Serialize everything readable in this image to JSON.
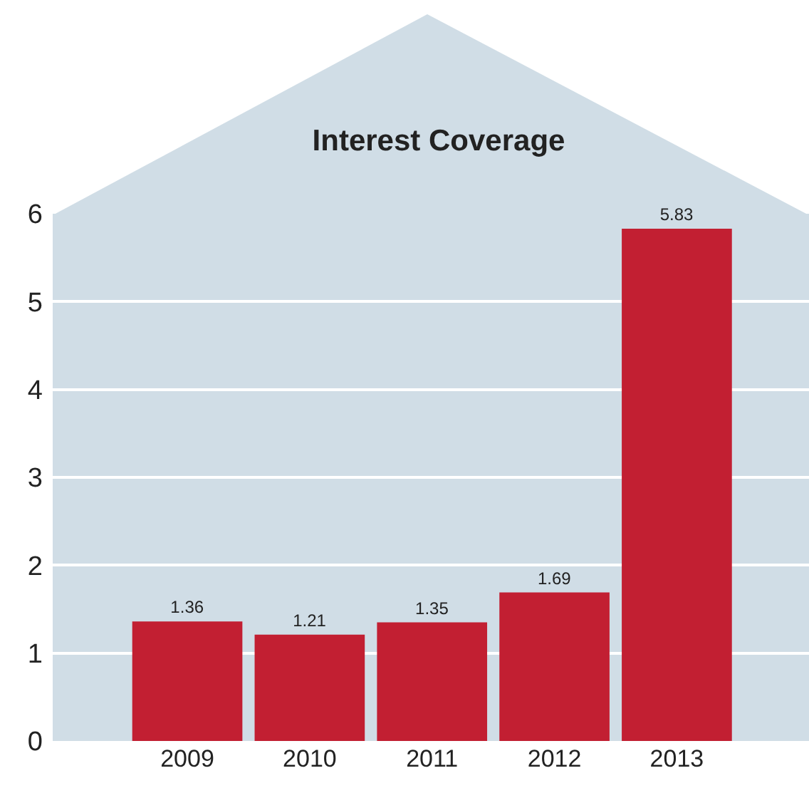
{
  "chart_data": {
    "type": "bar",
    "title": "Interest Coverage",
    "categories": [
      "2009",
      "2010",
      "2011",
      "2012",
      "2013"
    ],
    "values": [
      1.36,
      1.21,
      1.35,
      1.69,
      5.83
    ],
    "color": "#c21f32",
    "ylim": [
      0,
      6
    ],
    "yticks": [
      0,
      1,
      2,
      3,
      4,
      5,
      6
    ],
    "grid": "y",
    "data_labels": true
  }
}
